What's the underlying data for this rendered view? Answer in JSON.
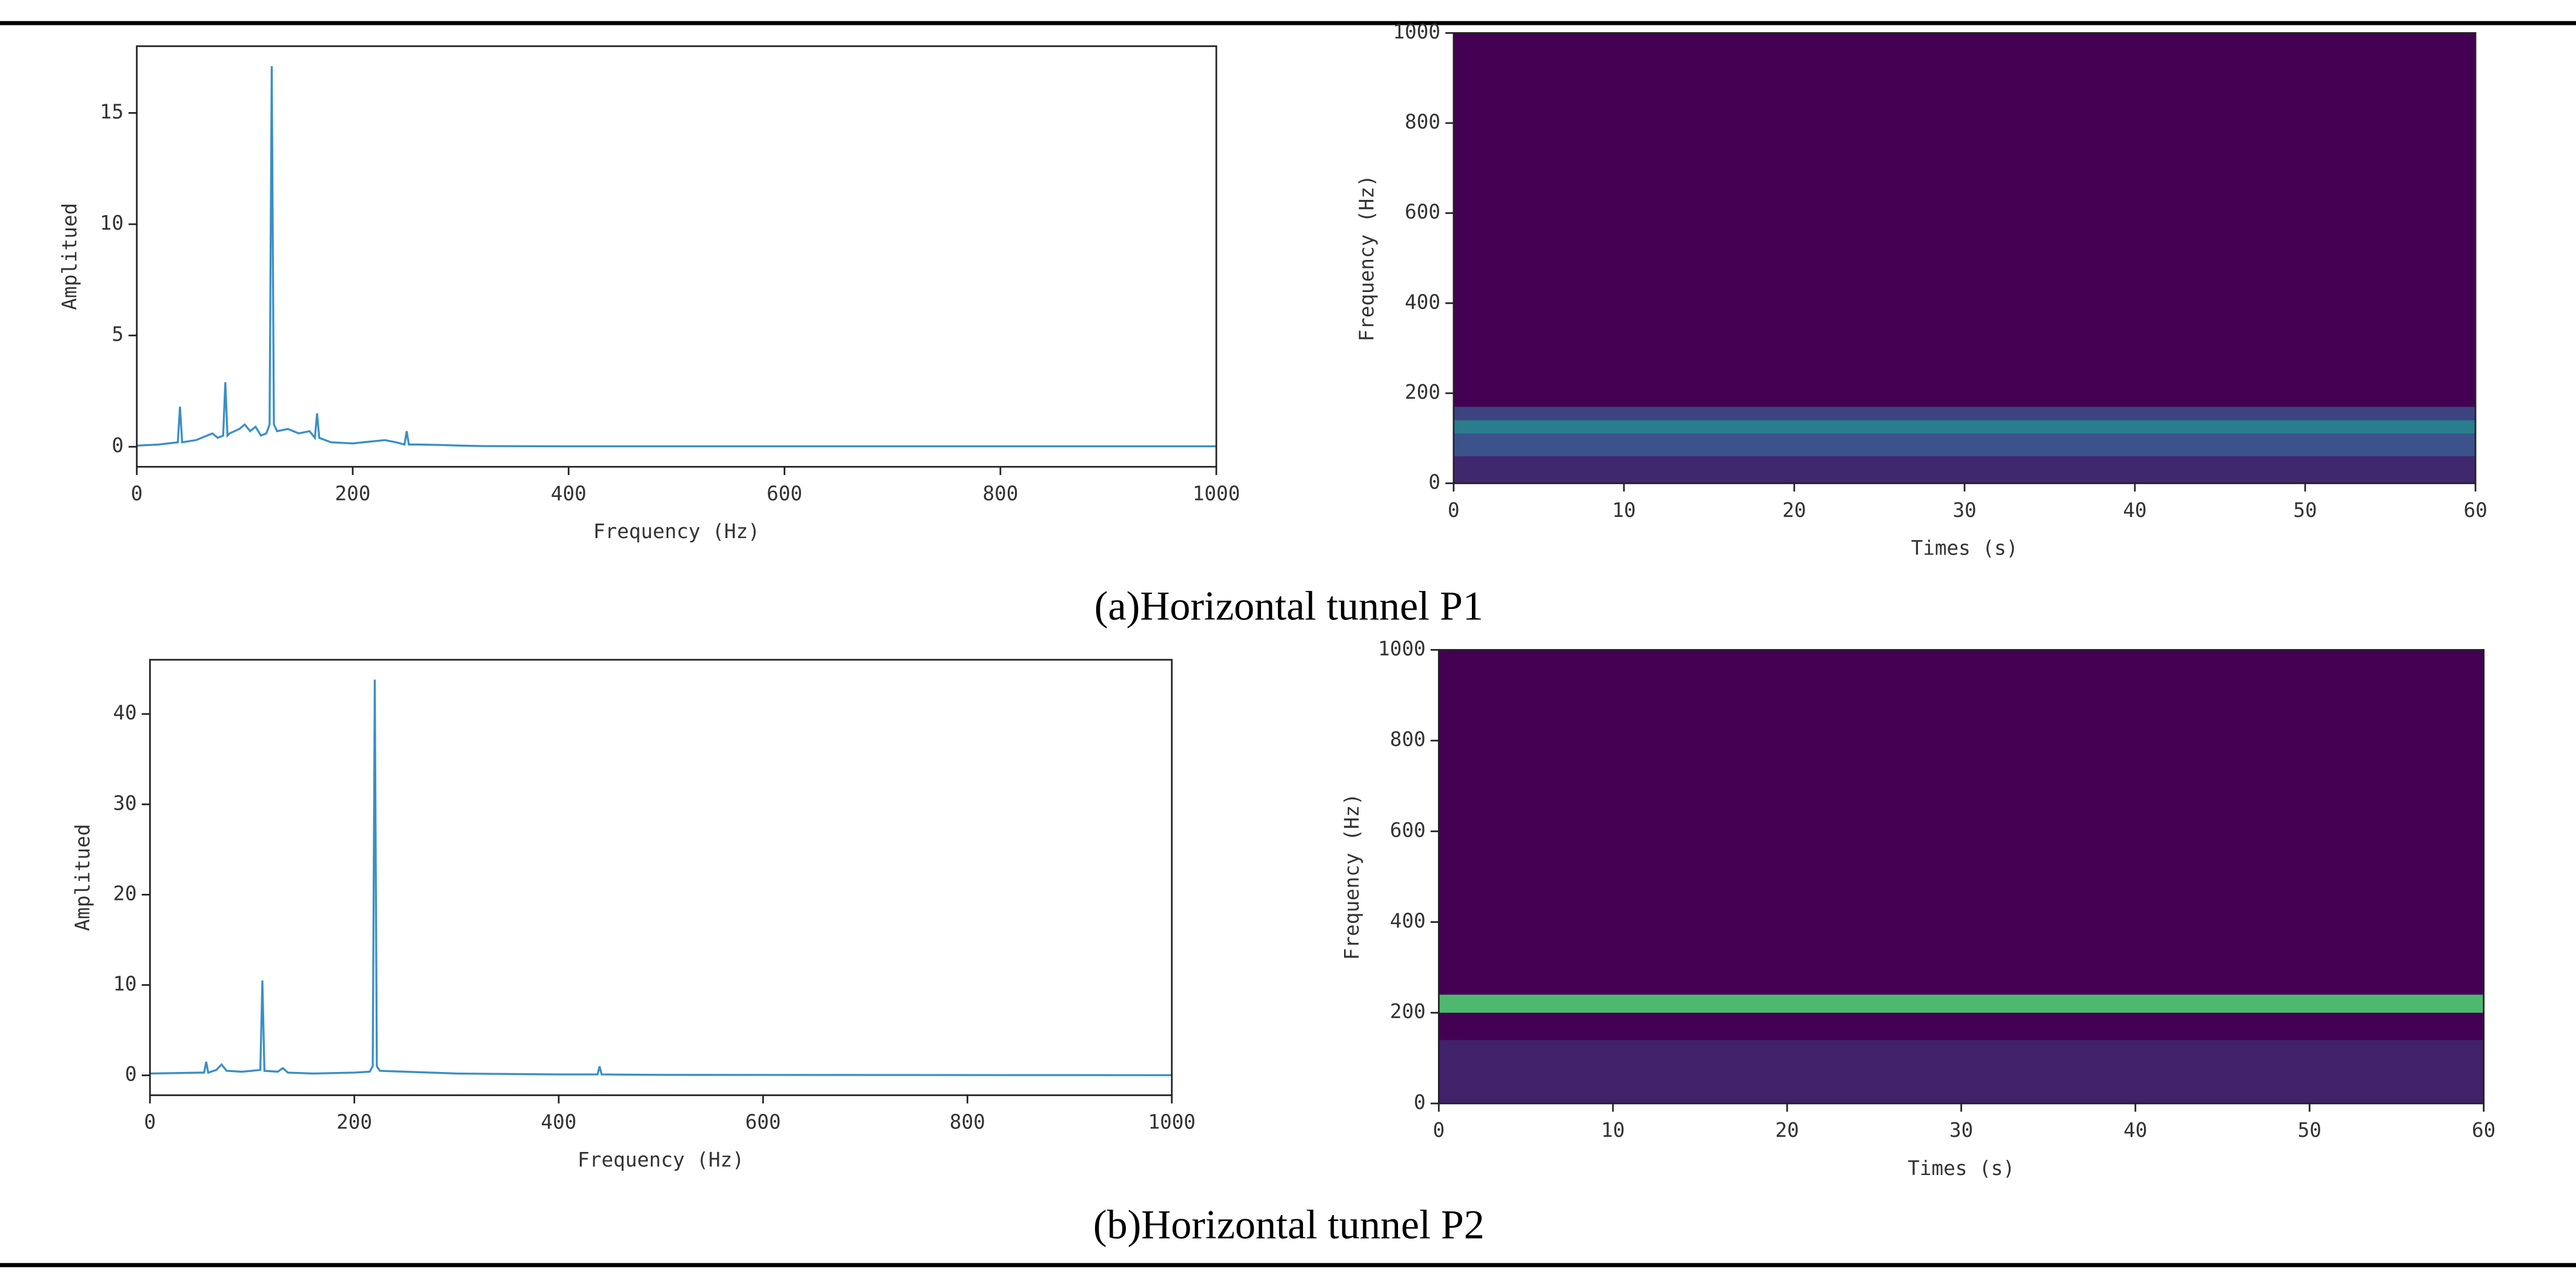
{
  "captions": [
    "(a)Horizontal tunnel P1",
    "(b)Horizontal tunnel P2"
  ],
  "chart_data": [
    {
      "type": "line",
      "xlabel": "Frequency (Hz)",
      "ylabel": "Amplitued",
      "color": "#3a8fc4",
      "xlim": [
        0,
        1000
      ],
      "ylim": [
        -0.9,
        18
      ],
      "xticks": [
        0,
        200,
        400,
        600,
        800,
        1000
      ],
      "yticks": [
        0,
        5,
        10,
        15
      ],
      "x": [
        0,
        20,
        38,
        40,
        42,
        55,
        65,
        70,
        75,
        80,
        82,
        84,
        86,
        95,
        100,
        105,
        110,
        115,
        120,
        123,
        125,
        127,
        130,
        140,
        150,
        160,
        165,
        167,
        169,
        180,
        200,
        220,
        230,
        240,
        248,
        250,
        252,
        260,
        280,
        300,
        320,
        400,
        1000
      ],
      "values": [
        0.05,
        0.1,
        0.2,
        1.8,
        0.2,
        0.3,
        0.5,
        0.6,
        0.4,
        0.5,
        2.9,
        0.5,
        0.6,
        0.8,
        1.0,
        0.7,
        0.9,
        0.5,
        0.6,
        1.0,
        17.1,
        1.0,
        0.7,
        0.8,
        0.6,
        0.7,
        0.4,
        1.5,
        0.4,
        0.2,
        0.15,
        0.25,
        0.3,
        0.2,
        0.1,
        0.7,
        0.1,
        0.1,
        0.08,
        0.05,
        0.03,
        0.02,
        0.02
      ]
    },
    {
      "type": "spectrogram",
      "xlabel": "Times (s)",
      "ylabel": "Frequency (Hz)",
      "xlim": [
        0,
        60
      ],
      "ylim": [
        0,
        1000
      ],
      "xticks": [
        0,
        10,
        20,
        30,
        40,
        50,
        60
      ],
      "yticks": [
        0,
        200,
        400,
        600,
        800,
        1000
      ],
      "colormap": [
        "#440154",
        "#3b528b",
        "#21918c",
        "#5ec962",
        "#fde725"
      ],
      "bins": [
        0,
        60,
        110,
        140,
        170,
        1000
      ],
      "intensity": [
        0.12,
        0.25,
        0.42,
        0.2,
        0
      ]
    },
    {
      "type": "line",
      "xlabel": "Frequency (Hz)",
      "ylabel": "Amplitued",
      "color": "#3a8fc4",
      "xlim": [
        0,
        1000
      ],
      "ylim": [
        -2.2,
        46
      ],
      "xticks": [
        0,
        200,
        400,
        600,
        800,
        1000
      ],
      "yticks": [
        0,
        10,
        20,
        30,
        40
      ],
      "x": [
        0,
        50,
        53,
        55,
        57,
        65,
        70,
        75,
        90,
        100,
        108,
        110,
        112,
        125,
        130,
        135,
        160,
        200,
        215,
        218,
        220,
        222,
        225,
        250,
        300,
        400,
        438,
        440,
        442,
        500,
        1000
      ],
      "values": [
        0.2,
        0.3,
        0.3,
        1.5,
        0.3,
        0.6,
        1.2,
        0.5,
        0.4,
        0.5,
        0.6,
        10.5,
        0.5,
        0.4,
        0.8,
        0.3,
        0.2,
        0.3,
        0.4,
        1.0,
        43.8,
        1.0,
        0.5,
        0.4,
        0.2,
        0.1,
        0.1,
        1.0,
        0.1,
        0.05,
        0.02
      ]
    },
    {
      "type": "spectrogram",
      "xlabel": "Times (s)",
      "ylabel": "Frequency (Hz)",
      "xlim": [
        0,
        60
      ],
      "ylim": [
        0,
        1000
      ],
      "xticks": [
        0,
        10,
        20,
        30,
        40,
        50,
        60
      ],
      "yticks": [
        0,
        200,
        400,
        600,
        800,
        1000
      ],
      "colormap": [
        "#440154",
        "#3b528b",
        "#21918c",
        "#5ec962",
        "#fde725"
      ],
      "bins": [
        0,
        140,
        200,
        240,
        1000
      ],
      "intensity": [
        0.1,
        0,
        0.68,
        0
      ]
    }
  ]
}
